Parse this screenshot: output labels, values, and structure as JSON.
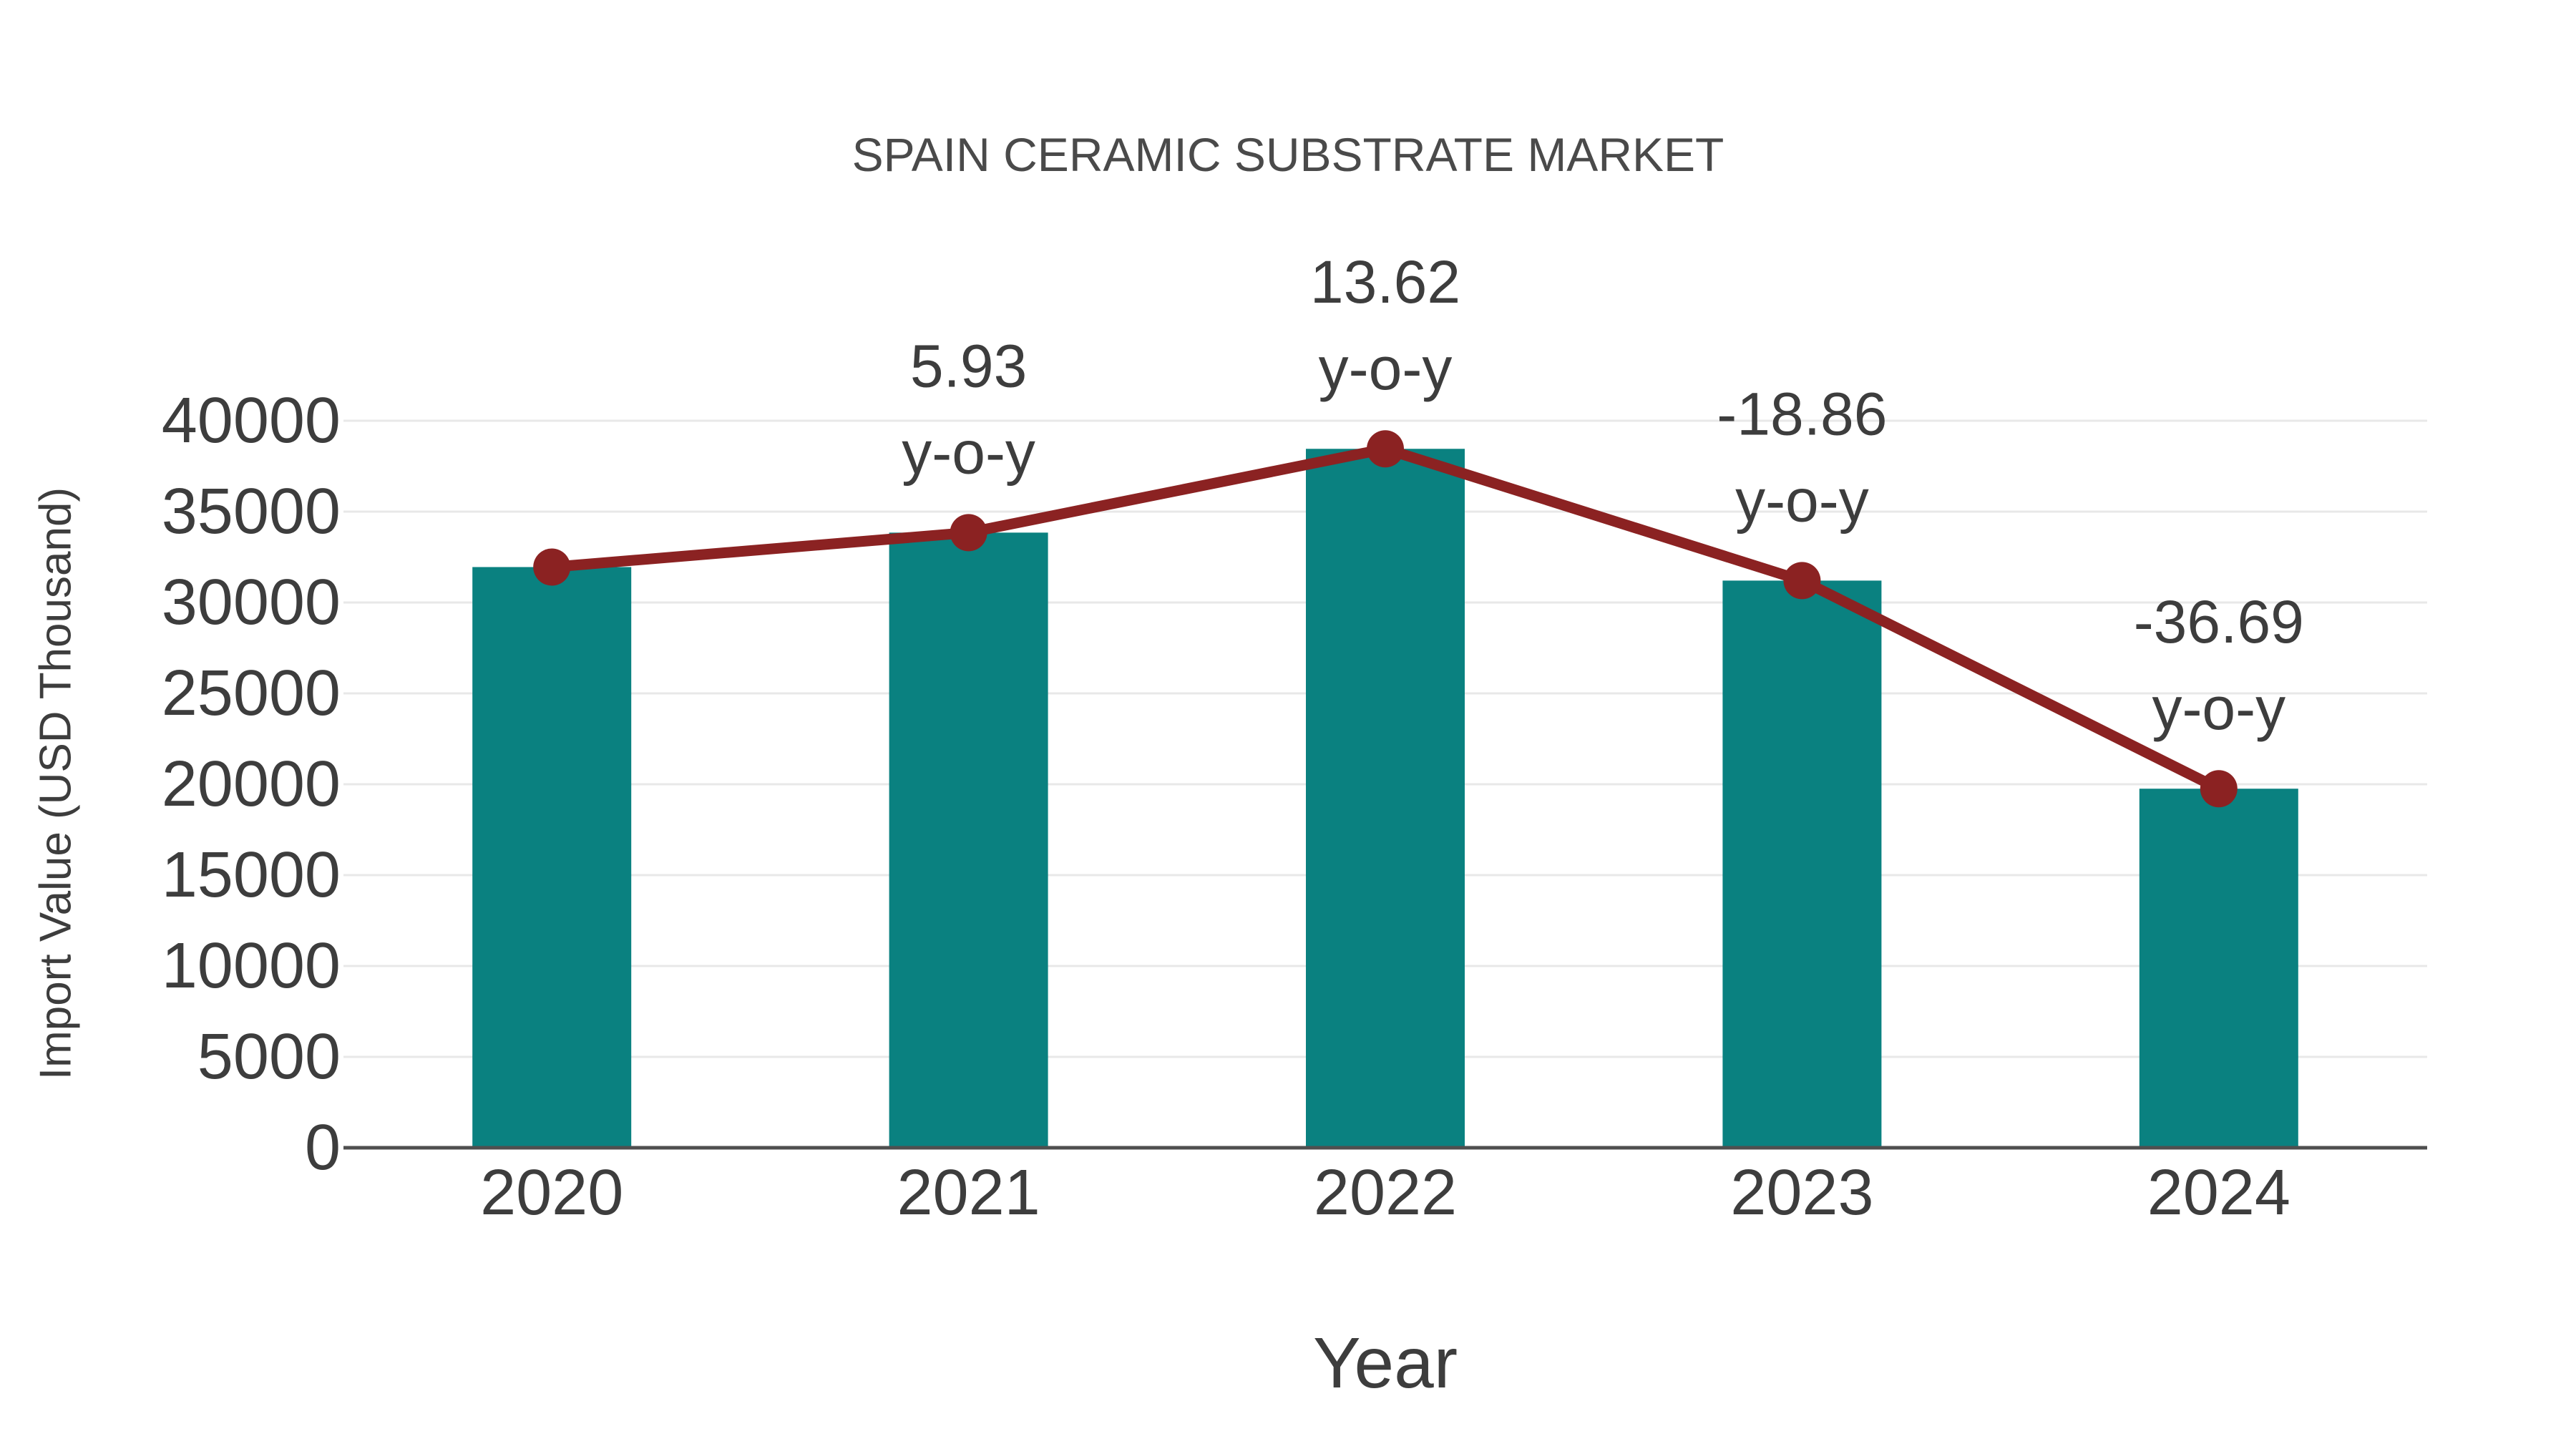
{
  "colors": {
    "background": "#ffffff",
    "bar": "#0a8180",
    "line": "#8b2222",
    "marker": "#8b2222",
    "title_text": "#4a4a4a",
    "tick_text": "#3d3d3d",
    "annotation_text": "#3d3d3d",
    "axis_label_text": "#3d3d3d",
    "grid": "#e8e8e8",
    "axis_line": "#4f4f4f"
  },
  "chart_data": {
    "type": "bar",
    "title": "SPAIN CERAMIC SUBSTRATE MARKET",
    "xlabel": "Year",
    "ylabel": "Import Value (USD Thousand)",
    "categories": [
      "2020",
      "2021",
      "2022",
      "2023",
      "2024"
    ],
    "series": [
      {
        "name": "Import Value (USD Thousand)",
        "type": "bar",
        "values": [
          31950,
          33845,
          38455,
          31205,
          19755
        ]
      },
      {
        "name": "y-o-y change (%)",
        "type": "line",
        "values": [
          31950,
          33845,
          38455,
          31205,
          19755
        ],
        "annotations": [
          null,
          "5.93",
          "13.62",
          "-18.86",
          "-36.69"
        ],
        "annotation_suffix": "y-o-y"
      }
    ],
    "ylim": [
      0,
      40000
    ],
    "ytick_step": 5000,
    "yticks": [
      "0",
      "5000",
      "10000",
      "15000",
      "20000",
      "25000",
      "30000",
      "35000",
      "40000"
    ],
    "grid": "horizontal",
    "legend": "none"
  }
}
